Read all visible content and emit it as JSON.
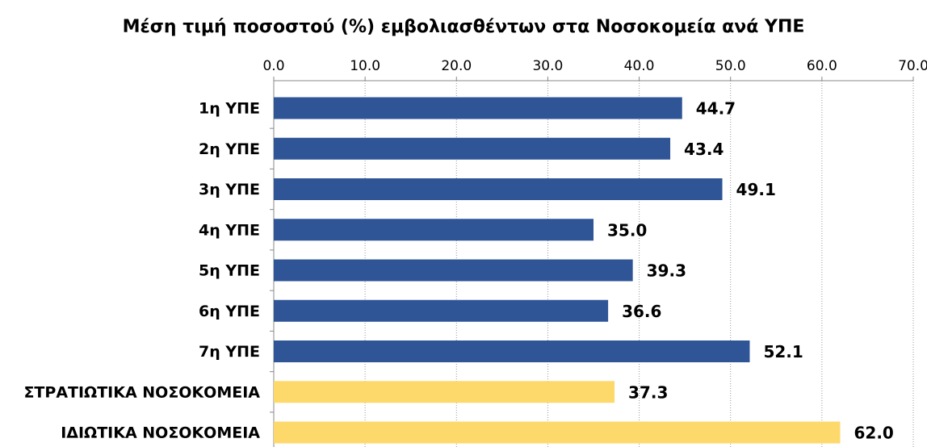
{
  "chart_data": {
    "type": "barh",
    "title": "Μέση τιμή ποσοστού (%) εμβολιασθέντων στα Νοσοκομεία ανά ΥΠΕ",
    "categories": [
      "1η ΥΠΕ",
      "2η ΥΠΕ",
      "3η ΥΠΕ",
      "4η ΥΠΕ",
      "5η ΥΠΕ",
      "6η ΥΠΕ",
      "7η ΥΠΕ",
      "ΣΤΡΑΤΙΩΤΙΚΑ ΝΟΣΟΚΟΜΕΙΑ",
      "ΙΔΙΩΤΙΚΑ ΝΟΣΟΚΟΜΕΙΑ"
    ],
    "values": [
      44.7,
      43.4,
      49.1,
      35.0,
      39.3,
      36.6,
      52.1,
      37.3,
      62.0
    ],
    "value_labels": [
      "44.7",
      "43.4",
      "49.1",
      "35.0",
      "39.3",
      "36.6",
      "52.1",
      "37.3",
      "62.0"
    ],
    "colors": [
      "#2f5597",
      "#2f5597",
      "#2f5597",
      "#2f5597",
      "#2f5597",
      "#2f5597",
      "#2f5597",
      "#fdd96b",
      "#fdd96b"
    ],
    "xlim": [
      0,
      70
    ],
    "xticks": [
      {
        "value": 0,
        "label": "0.0"
      },
      {
        "value": 10,
        "label": "10.0"
      },
      {
        "value": 20,
        "label": "20.0"
      },
      {
        "value": 30,
        "label": "30.0"
      },
      {
        "value": 40,
        "label": "40.0"
      },
      {
        "value": 50,
        "label": "50.0"
      },
      {
        "value": 60,
        "label": "60.0"
      },
      {
        "value": 70,
        "label": "70.0"
      }
    ],
    "grid": true
  }
}
